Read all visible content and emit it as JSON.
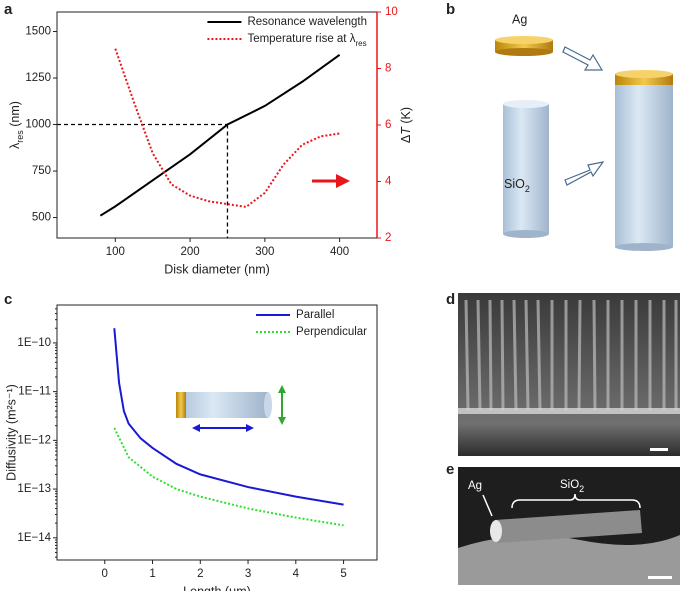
{
  "panels": {
    "labels": [
      "a",
      "b",
      "c",
      "d",
      "e"
    ]
  },
  "illustrations": {
    "b": {
      "ag": "Ag",
      "sio2": {
        "main": "SiO",
        "sub": "2"
      }
    },
    "e": {
      "ag": "Ag",
      "sio2": {
        "main": "SiO",
        "sub": "2"
      }
    }
  },
  "chart_data": [
    {
      "type": "line",
      "xlabel": "Disk diameter (nm)",
      "ylabel": {
        "main": "λ",
        "sub": "res",
        "unit": " (nm)"
      },
      "y2label": {
        "main": "Δ",
        "italic": "T",
        "unit": " (K)"
      },
      "xlim": [
        22,
        450
      ],
      "xticks": [
        100,
        200,
        300,
        400
      ],
      "ylim": [
        390,
        1605
      ],
      "yticks": [
        500,
        750,
        1000,
        1250,
        1500
      ],
      "y2lim": [
        2,
        10
      ],
      "y2ticks": [
        2,
        4,
        6,
        8,
        10
      ],
      "y2color": "#e8161b",
      "legend": "upper right",
      "guides": {
        "x": 250,
        "y": 1000
      },
      "series": [
        {
          "name": "Resonance wavelength",
          "color": "#000000",
          "linestyle": "solid",
          "x": [
            80,
            100,
            150,
            200,
            250,
            300,
            350,
            400
          ],
          "values": [
            510,
            560,
            700,
            840,
            1000,
            1100,
            1230,
            1375
          ]
        },
        {
          "name": "Temperature rise at λ",
          "name_sub": "res",
          "color": "#e8161b",
          "linestyle": "dotted",
          "axis": "y2",
          "x": [
            100,
            125,
            150,
            175,
            200,
            225,
            250,
            275,
            300,
            325,
            350,
            375,
            400
          ],
          "values": [
            8.7,
            6.8,
            5.0,
            3.9,
            3.5,
            3.3,
            3.2,
            3.1,
            3.6,
            4.6,
            5.3,
            5.6,
            5.7
          ]
        }
      ]
    },
    {
      "type": "line",
      "xlabel": "Length (μm)",
      "ylabel": "Diffusivity (m²s⁻¹)",
      "xlim": [
        -1,
        5.7
      ],
      "xticks": [
        0,
        1,
        2,
        3,
        4,
        5
      ],
      "log_y": true,
      "ylim": [
        3.5e-15,
        6e-10
      ],
      "yticks": [
        {
          "value": 1e-10,
          "label": "1E−10"
        },
        {
          "value": 1e-11,
          "label": "1E−11"
        },
        {
          "value": 1e-12,
          "label": "1E−12"
        },
        {
          "value": 1e-13,
          "label": "1E−13"
        },
        {
          "value": 1e-14,
          "label": "1E−14"
        }
      ],
      "legend": "upper right",
      "series": [
        {
          "name": "Parallel",
          "color": "#1a1ad4",
          "linestyle": "solid",
          "x": [
            0.2,
            0.3,
            0.4,
            0.5,
            0.75,
            1,
            1.5,
            2,
            3,
            4,
            5
          ],
          "values": [
            2e-10,
            1.5e-11,
            4e-12,
            2.2e-12,
            1.1e-12,
            7e-13,
            3.3e-13,
            2e-13,
            1.1e-13,
            7e-14,
            4.8e-14
          ]
        },
        {
          "name": "Perpendicular",
          "color": "#2ee02e",
          "linestyle": "dotted",
          "x": [
            0.2,
            0.5,
            1,
            1.5,
            2,
            3,
            4,
            5
          ],
          "values": [
            1.8e-12,
            4.5e-13,
            1.8e-13,
            1e-13,
            7e-14,
            4e-14,
            2.6e-14,
            1.8e-14
          ]
        }
      ]
    }
  ]
}
